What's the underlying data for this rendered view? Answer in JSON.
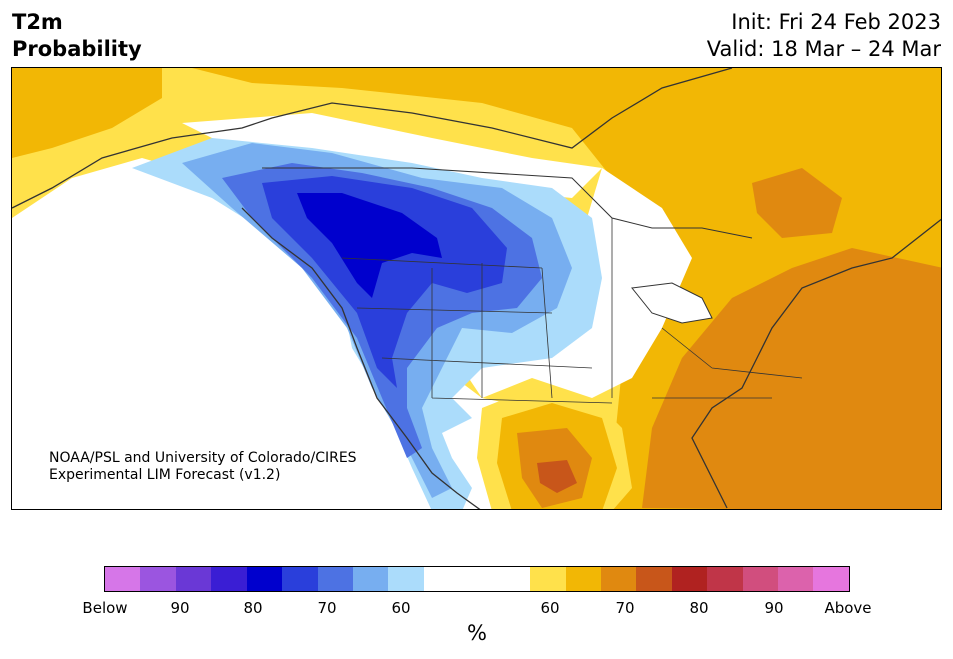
{
  "title": {
    "left_line1": "T2m",
    "left_line2": "Probability",
    "right_line1": "Init: Fri 24 Feb 2023",
    "right_line2": "Valid: 18 Mar – 24 Mar"
  },
  "credit": {
    "line1": "NOAA/PSL and University of Colorado/CIRES",
    "line2": "Experimental LIM Forecast (v1.2)"
  },
  "colorbar": {
    "colors": [
      "#d676e8",
      "#9b55e0",
      "#6a38d6",
      "#3a1ed4",
      "#0000cd",
      "#2a3fdb",
      "#4d72e3",
      "#77aef0",
      "#abdcfb",
      "#ffffff",
      "#ffe14b",
      "#f2b705",
      "#e08910",
      "#c8561a",
      "#b02220",
      "#c03548",
      "#d14e7e",
      "#dc62ac",
      "#e676de"
    ],
    "ticks": [
      "Below",
      "90",
      "80",
      "70",
      "60",
      "60",
      "70",
      "80",
      "90",
      "Above"
    ],
    "unit": "%"
  },
  "map": {
    "land_color": "#ffffff",
    "water_color": "#ffffff",
    "border_color": "#333333"
  }
}
